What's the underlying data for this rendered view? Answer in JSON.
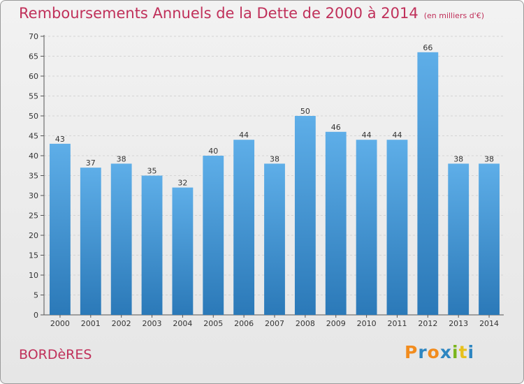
{
  "title": "Remboursements Annuels de la Dette de 2000 à 2014",
  "unit": "(en milliers d'€)",
  "city": "BORDèRES",
  "logo": {
    "text": "Proxiti",
    "letters": [
      "P",
      "r",
      "o",
      "x",
      "i",
      "t",
      "i"
    ],
    "colors": [
      "#f28c1e",
      "#2e86c1",
      "#f28c1e",
      "#2e86c1",
      "#7ab51d",
      "#e8c11c",
      "#2e86c1"
    ]
  },
  "colors": {
    "title": "#c0305a",
    "bar_light": "#5eaee8",
    "bar_dark": "#2b79b8"
  },
  "chart_data": {
    "type": "bar",
    "categories": [
      "2000",
      "2001",
      "2002",
      "2003",
      "2004",
      "2005",
      "2006",
      "2007",
      "2008",
      "2009",
      "2010",
      "2011",
      "2012",
      "2013",
      "2014"
    ],
    "values": [
      43,
      37,
      38,
      35,
      32,
      40,
      44,
      38,
      50,
      46,
      44,
      44,
      66,
      38,
      38
    ],
    "data_labels": [
      "43",
      "37",
      "38",
      "35",
      "32",
      "40",
      "44",
      "38",
      "50",
      "46",
      "44",
      "44",
      "66",
      "38",
      "38"
    ],
    "yticks": [
      "0",
      "5",
      "10",
      "15",
      "20",
      "25",
      "30",
      "35",
      "40",
      "45",
      "50",
      "55",
      "60",
      "65",
      "70"
    ],
    "ylim": [
      0,
      70
    ],
    "grid": true,
    "title": "Remboursements Annuels de la Dette de 2000 à 2014",
    "xlabel": "",
    "ylabel": ""
  }
}
